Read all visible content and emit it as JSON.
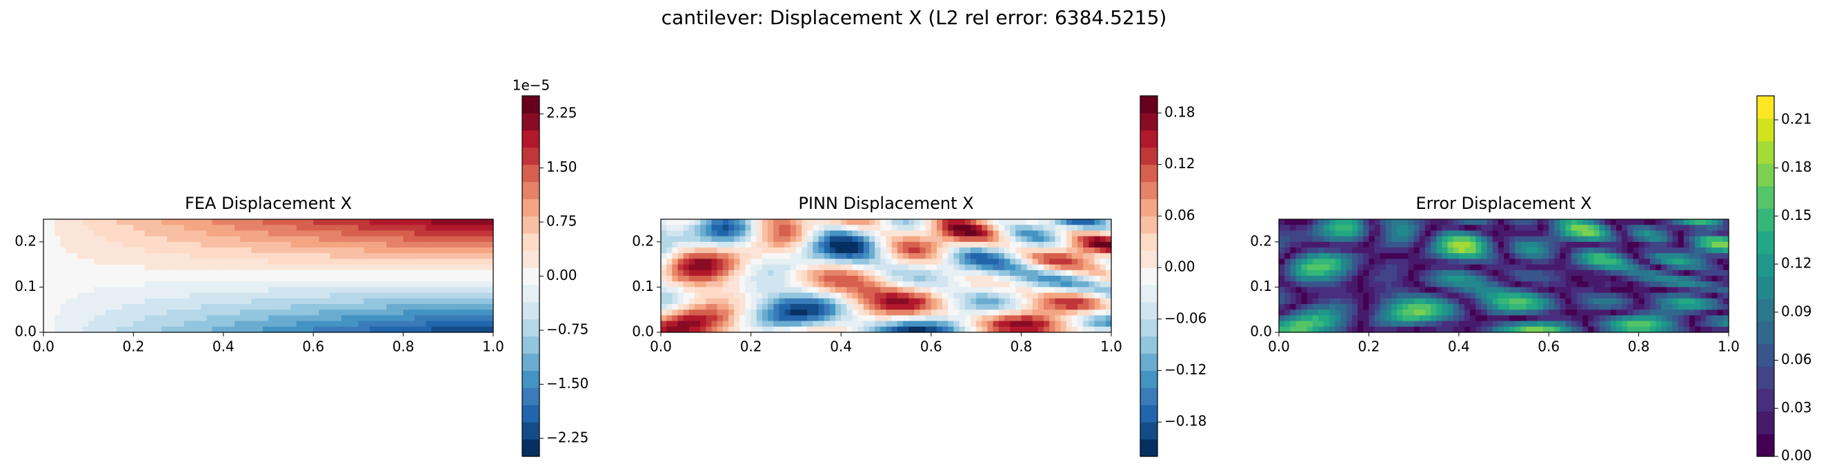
{
  "title": "cantilever: Displacement X (L2 rel error: 6384.5215)",
  "chart_data": [
    {
      "type": "contour",
      "title": "FEA Displacement X",
      "field": "smooth",
      "xlim": [
        0,
        1
      ],
      "ylim": [
        0,
        0.25
      ],
      "xticks": [
        {
          "value": 0,
          "label": "0.0"
        },
        0.2,
        0.4,
        0.6,
        0.8,
        {
          "value": 1,
          "label": "1.0"
        }
      ],
      "yticks": [
        {
          "value": 0,
          "label": "0.0"
        },
        0.1,
        0.2
      ],
      "clim": [
        -2.5,
        2.5
      ],
      "offset_label": "1e−5",
      "cticks": [
        2.25,
        {
          "value": 1.5,
          "label": "1.50"
        },
        0.75,
        {
          "value": 0,
          "label": "0.00"
        },
        {
          "value": -0.75,
          "label": "−0.75"
        },
        {
          "value": -1.5,
          "label": "−1.50"
        },
        {
          "value": -2.25,
          "label": "−2.25"
        }
      ],
      "colors": [
        "#053061",
        "#134c88",
        "#2166ac",
        "#3a7bb9",
        "#4393c3",
        "#6aacd0",
        "#92c5de",
        "#b5d7e8",
        "#d1e5f0",
        "#e6eff4",
        "#f7f7f7",
        "#fbe5d8",
        "#fddbc7",
        "#f8bfa4",
        "#f4a582",
        "#e58267",
        "#d6604d",
        "#c13639",
        "#b2182b",
        "#8a0b24",
        "#67001f"
      ]
    },
    {
      "type": "contour",
      "title": "PINN Displacement X",
      "field": "noise",
      "xlim": [
        0,
        1
      ],
      "ylim": [
        0,
        0.25
      ],
      "xticks": [
        {
          "value": 0,
          "label": "0.0"
        },
        0.2,
        0.4,
        0.6,
        0.8,
        {
          "value": 1,
          "label": "1.0"
        }
      ],
      "yticks": [
        {
          "value": 0,
          "label": "0.0"
        },
        0.1,
        0.2
      ],
      "clim": [
        -0.22,
        0.2
      ],
      "cticks": [
        0.18,
        0.12,
        0.06,
        {
          "value": 0,
          "label": "0.00"
        },
        {
          "value": -0.06,
          "label": "−0.06"
        },
        {
          "value": -0.12,
          "label": "−0.12"
        },
        {
          "value": -0.18,
          "label": "−0.18"
        }
      ],
      "colors": [
        "#053061",
        "#134c88",
        "#2166ac",
        "#3a7bb9",
        "#4393c3",
        "#6aacd0",
        "#92c5de",
        "#b5d7e8",
        "#d1e5f0",
        "#e6eff4",
        "#f7f7f7",
        "#fbe5d8",
        "#fddbc7",
        "#f8bfa4",
        "#f4a582",
        "#e58267",
        "#d6604d",
        "#c13639",
        "#b2182b",
        "#8a0b24",
        "#67001f"
      ]
    },
    {
      "type": "contour",
      "title": "Error Displacement X",
      "field": "abs-noise",
      "xlim": [
        0,
        1
      ],
      "ylim": [
        0,
        0.25
      ],
      "xticks": [
        {
          "value": 0,
          "label": "0.0"
        },
        0.2,
        0.4,
        0.6,
        0.8,
        {
          "value": 1,
          "label": "1.0"
        }
      ],
      "yticks": [
        {
          "value": 0,
          "label": "0.0"
        },
        0.1,
        0.2
      ],
      "clim": [
        0,
        0.225
      ],
      "cticks": [
        {
          "value": 0,
          "label": "0.00"
        },
        0.03,
        0.06,
        0.09,
        0.12,
        0.15,
        0.18,
        0.21
      ],
      "colors": [
        "#440154",
        "#481a6c",
        "#472f7d",
        "#414487",
        "#39568c",
        "#31688e",
        "#2a788e",
        "#23888e",
        "#1f988b",
        "#22a884",
        "#35b779",
        "#54c568",
        "#7ad151",
        "#a5db36",
        "#d2e21b",
        "#fde725"
      ]
    }
  ]
}
